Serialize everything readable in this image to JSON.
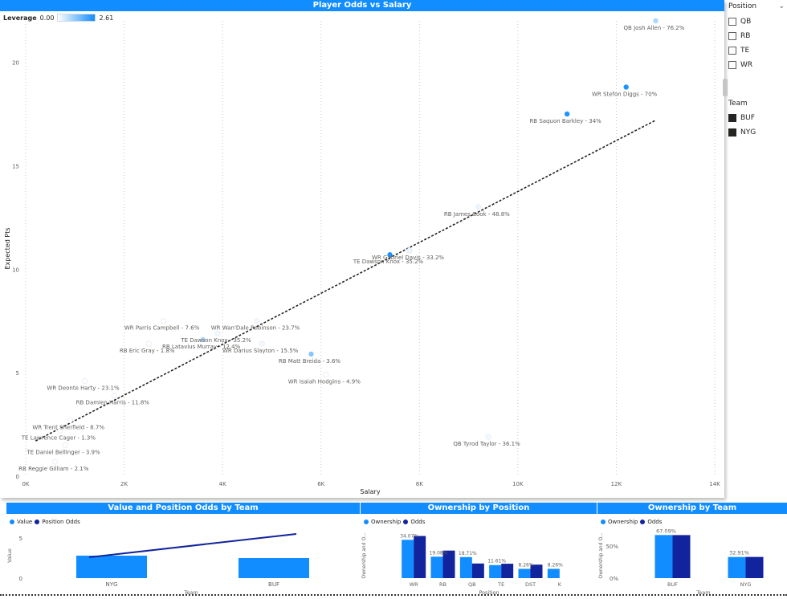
{
  "main_chart": {
    "title": "Player Odds vs Salary",
    "legend_label": "Leverage",
    "legend_min": "0.00",
    "legend_max": "2.61"
  },
  "slicers": {
    "position": {
      "title": "Position",
      "items": [
        {
          "label": "QB",
          "checked": false
        },
        {
          "label": "RB",
          "checked": false
        },
        {
          "label": "TE",
          "checked": false
        },
        {
          "label": "WR",
          "checked": false
        }
      ]
    },
    "team": {
      "title": "Team",
      "items": [
        {
          "label": "BUF",
          "checked": true
        },
        {
          "label": "NYG",
          "checked": true
        }
      ]
    }
  },
  "bottom": {
    "value_team": {
      "title": "Value and Position Odds by Team",
      "legend": [
        "Value",
        "Position Odds"
      ],
      "ylabel": "Value",
      "xlabel": "Team"
    },
    "own_pos": {
      "title": "Ownership by Position",
      "legend": [
        "Ownership",
        "Odds"
      ],
      "ylabel": "Ownership and O...",
      "xlabel": "Position"
    },
    "own_team": {
      "title": "Ownership by Team",
      "legend": [
        "Ownership",
        "Odds"
      ],
      "ylabel": "Ownership and O...",
      "xlabel": "Team"
    }
  },
  "colors": {
    "accent": "#118dff",
    "dark": "#12239e",
    "navy": "#1a237e",
    "text": "#605e5c"
  },
  "chart_data": [
    {
      "type": "scatter",
      "title": "Player Odds vs Salary",
      "xlabel": "Salary",
      "ylabel": "Expected Pts",
      "xlim": [
        0,
        14000
      ],
      "ylim": [
        0,
        22
      ],
      "xticks": [
        0,
        2000,
        4000,
        6000,
        8000,
        10000,
        12000,
        14000
      ],
      "xtick_labels": [
        "0K",
        "2K",
        "4K",
        "6K",
        "8K",
        "10K",
        "12K",
        "14K"
      ],
      "yticks": [
        0,
        5,
        10,
        15,
        20
      ],
      "trendline": {
        "x": [
          200,
          12800
        ],
        "y": [
          1.7,
          17.2
        ]
      },
      "points": [
        {
          "label": "QB Josh Allen - 76.2%",
          "x": 12800,
          "y": 22.0,
          "shade": 0.35
        },
        {
          "label": "WR Stefon Diggs - 70%",
          "x": 12200,
          "y": 18.8,
          "shade": 0.95
        },
        {
          "label": "RB Saquon Barkley - 34%",
          "x": 11000,
          "y": 17.5,
          "shade": 0.95
        },
        {
          "label": "RB James Cook - 48.8%",
          "x": 9200,
          "y": 13.0,
          "shade": 0.08
        },
        {
          "label": "WR Gabriel Davis - 33.2%",
          "x": 7800,
          "y": 10.9,
          "shade": 0.08
        },
        {
          "label": "TE Dawson Knox - 35.2%",
          "x": 7400,
          "y": 10.7,
          "shade": 0.95
        },
        {
          "label": "WR Parris Campbell - 7.6%",
          "x": 2800,
          "y": 7.5,
          "shade": 0.0
        },
        {
          "label": "WR Wan'Dale Robinson - 23.7%",
          "x": 4700,
          "y": 7.5,
          "shade": 0.05
        },
        {
          "label": "TE Dawson Knox - 35.2%",
          "x": 3900,
          "y": 6.9,
          "shade": 0.05
        },
        {
          "label": "RB Eric Gray - 1.8%",
          "x": 2500,
          "y": 6.4,
          "shade": 0.0
        },
        {
          "label": "WR Darius Slayton - 15.5%",
          "x": 4800,
          "y": 6.4,
          "shade": 0.05
        },
        {
          "label": "RB Latavius Murray - 12.4%",
          "x": 3600,
          "y": 6.6,
          "shade": 0.35
        },
        {
          "label": "RB Matt Breida - 3.6%",
          "x": 5800,
          "y": 5.9,
          "shade": 0.5
        },
        {
          "label": "WR Isaiah Hodgins - 4.9%",
          "x": 6100,
          "y": 4.9,
          "shade": 0.0
        },
        {
          "label": "WR Deonte Harty - 23.1%",
          "x": 1200,
          "y": 4.6,
          "shade": 0.0
        },
        {
          "label": "RB Damien Harris - 11.8%",
          "x": 1800,
          "y": 3.9,
          "shade": 0.0
        },
        {
          "label": "WR Trent Sherfield - 8.7%",
          "x": 900,
          "y": 2.7,
          "shade": 0.0
        },
        {
          "label": "TE Lawrence Cager - 1.3%",
          "x": 700,
          "y": 2.2,
          "shade": 0.0
        },
        {
          "label": "TE Daniel Bellinger - 3.9%",
          "x": 800,
          "y": 1.5,
          "shade": 0.0
        },
        {
          "label": "RB Reggie Gilliam - 2.1%",
          "x": 600,
          "y": 0.7,
          "shade": 0.0
        },
        {
          "label": "QB Tyrod Taylor - 36.1%",
          "x": 9400,
          "y": 1.9,
          "shade": 0.05
        }
      ]
    },
    {
      "type": "bar",
      "title": "Value and Position Odds by Team",
      "xlabel": "Team",
      "ylabel": "Value",
      "categories": [
        "NYG",
        "BUF"
      ],
      "ylim": [
        0,
        6
      ],
      "yticks": [
        0,
        5
      ],
      "series": [
        {
          "name": "Value",
          "values": [
            2.8,
            2.5
          ]
        },
        {
          "name": "Position Odds",
          "values": [
            2.6,
            5.5
          ]
        }
      ]
    },
    {
      "type": "bar",
      "title": "Ownership by Position",
      "xlabel": "Position",
      "ylabel": "Ownership and O...",
      "categories": [
        "WR",
        "RB",
        "QB",
        "TE",
        "DST",
        "K"
      ],
      "ylim": [
        0,
        40
      ],
      "series": [
        {
          "name": "Ownership",
          "values": [
            34.07,
            19.08,
            18.71,
            11.61,
            8.26,
            8.26
          ],
          "labels": [
            "34.07%",
            "19.08%",
            "18.71%",
            "11.61%",
            "8.26%",
            "8.26%"
          ]
        },
        {
          "name": "Odds",
          "values": [
            37.5,
            24.5,
            13.0,
            12.8,
            12.0,
            0
          ]
        }
      ]
    },
    {
      "type": "bar",
      "title": "Ownership by Team",
      "xlabel": "Team",
      "ylabel": "Ownership and O...",
      "categories": [
        "BUF",
        "NYG"
      ],
      "ylim": [
        0,
        75
      ],
      "yticks": [
        0,
        50
      ],
      "ytick_labels": [
        "0%",
        "50%"
      ],
      "series": [
        {
          "name": "Ownership",
          "values": [
            67.09,
            32.91
          ],
          "labels": [
            "67.09%",
            "32.91%"
          ]
        },
        {
          "name": "Odds",
          "values": [
            67.0,
            33.0
          ]
        }
      ]
    }
  ]
}
